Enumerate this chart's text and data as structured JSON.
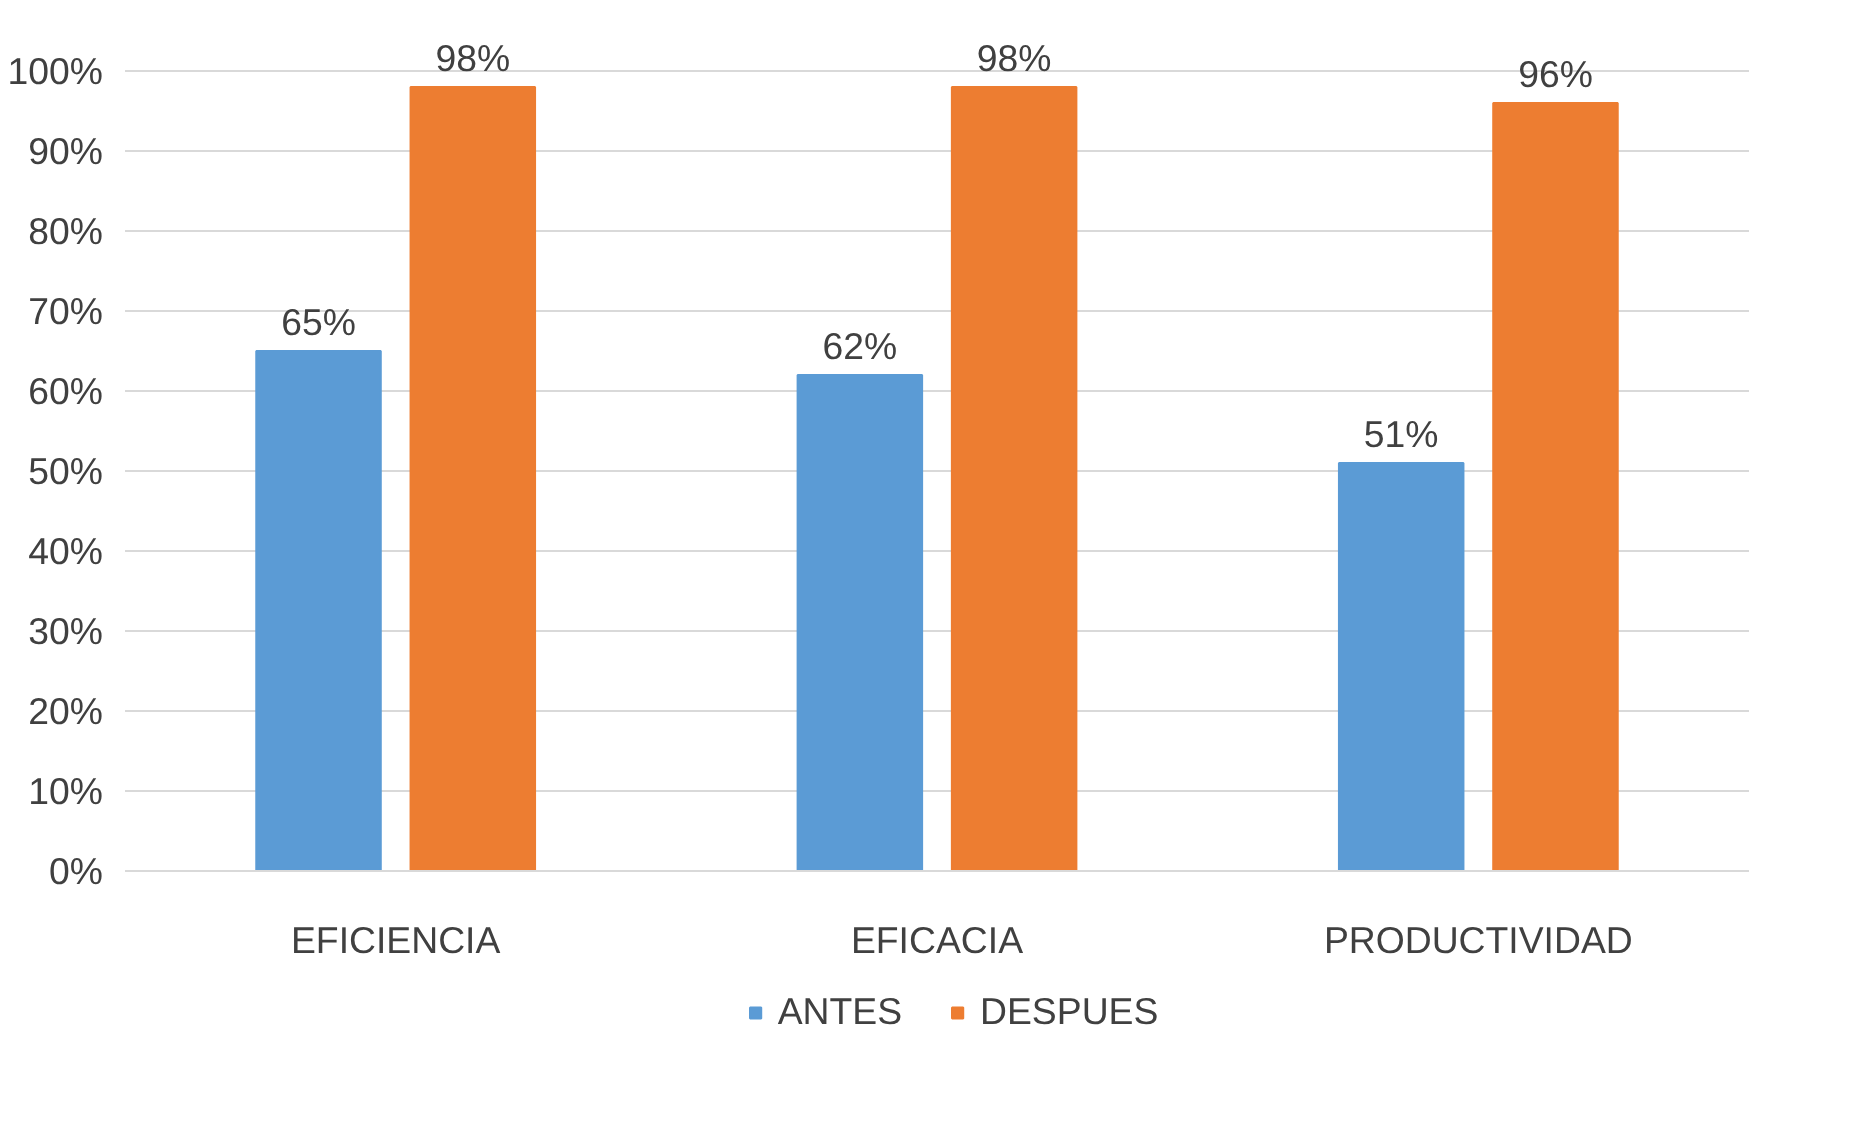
{
  "chart_data": {
    "type": "bar",
    "categories": [
      "EFICIENCIA",
      "EFICACIA",
      "PRODUCTIVIDAD"
    ],
    "series": [
      {
        "name": "ANTES",
        "color": "#5b9bd5",
        "values": [
          65,
          62,
          51
        ],
        "value_labels": [
          "65%",
          "62%",
          "51%"
        ]
      },
      {
        "name": "DESPUES",
        "color": "#ed7d31",
        "values": [
          98,
          98,
          96
        ],
        "value_labels": [
          "98%",
          "98%",
          "96%"
        ]
      }
    ],
    "ylim": [
      0,
      100
    ],
    "yticks": [
      {
        "value": 0,
        "label": "0%"
      },
      {
        "value": 10,
        "label": "10%"
      },
      {
        "value": 20,
        "label": "20%"
      },
      {
        "value": 30,
        "label": "30%"
      },
      {
        "value": 40,
        "label": "40%"
      },
      {
        "value": 50,
        "label": "50%"
      },
      {
        "value": 60,
        "label": "60%"
      },
      {
        "value": 70,
        "label": "70%"
      },
      {
        "value": 80,
        "label": "80%"
      },
      {
        "value": 90,
        "label": "90%"
      },
      {
        "value": 100,
        "label": "100%"
      }
    ],
    "grid": "y",
    "legend": "bottom"
  }
}
